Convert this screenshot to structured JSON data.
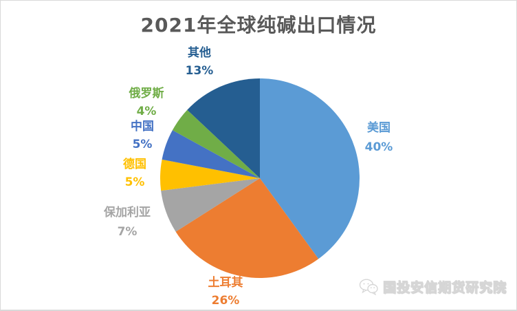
{
  "title": "2021年全球纯碱出口情况",
  "chart_data": {
    "type": "pie",
    "title": "2021年全球纯碱出口情况",
    "start_angle_deg": 0,
    "direction": "clockwise",
    "legend_position": "none",
    "slices": [
      {
        "id": "usa",
        "label": "美国",
        "value": 40,
        "pct_label": "40%",
        "color": "#5B9BD5"
      },
      {
        "id": "turkey",
        "label": "土耳其",
        "value": 26,
        "pct_label": "26%",
        "color": "#ED7D31"
      },
      {
        "id": "bulgaria",
        "label": "保加利亚",
        "value": 7,
        "pct_label": "7%",
        "color": "#A5A5A5"
      },
      {
        "id": "germany",
        "label": "德国",
        "value": 5,
        "pct_label": "5%",
        "color": "#FFC000"
      },
      {
        "id": "china",
        "label": "中国",
        "value": 5,
        "pct_label": "5%",
        "color": "#4472C4"
      },
      {
        "id": "russia",
        "label": "俄罗斯",
        "value": 4,
        "pct_label": "4%",
        "color": "#70AD47"
      },
      {
        "id": "others",
        "label": "其他",
        "value": 13,
        "pct_label": "13%",
        "color": "#255E91"
      }
    ]
  },
  "title_color": "#595959",
  "watermark": {
    "text": "国投安信期货研究院",
    "icon": "wechat-icon"
  }
}
